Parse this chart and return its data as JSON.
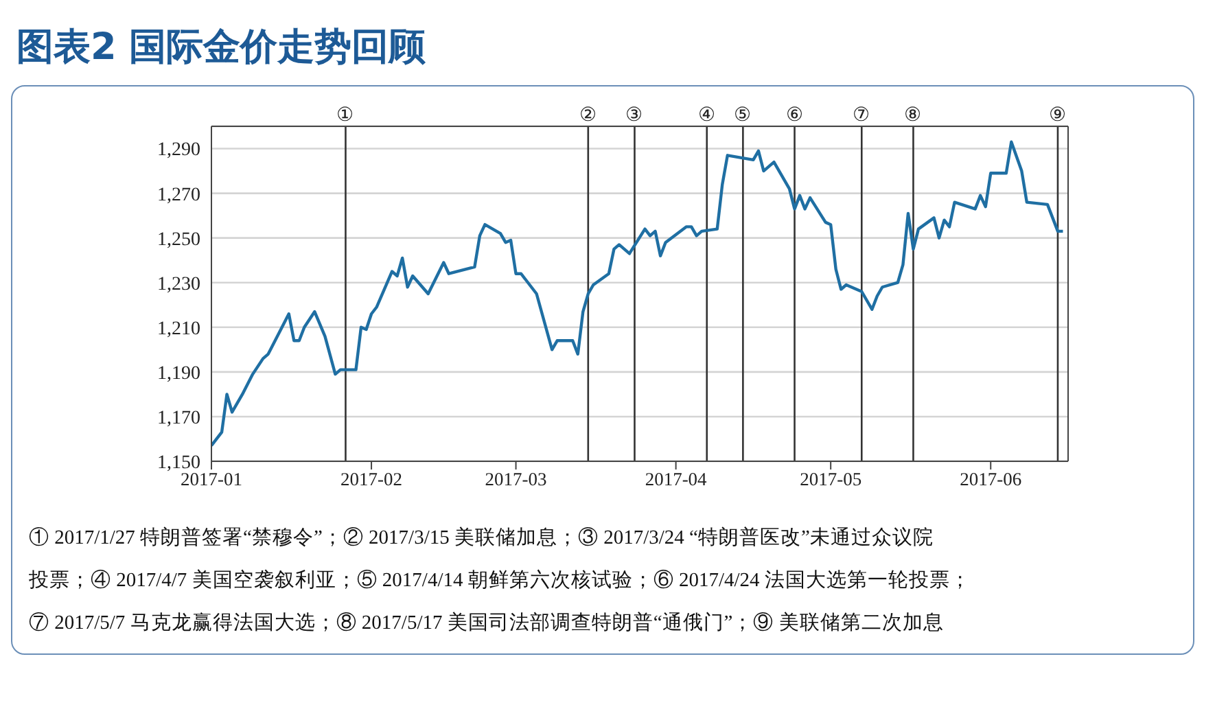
{
  "chart_data": {
    "type": "line",
    "title": "图表2 国际金价走势回顾",
    "x": [
      "2017-01-01",
      "2017-01-03",
      "2017-01-04",
      "2017-01-05",
      "2017-01-07",
      "2017-01-09",
      "2017-01-11",
      "2017-01-12",
      "2017-01-16",
      "2017-01-17",
      "2017-01-18",
      "2017-01-19",
      "2017-01-21",
      "2017-01-23",
      "2017-01-25",
      "2017-01-26",
      "2017-01-29",
      "2017-01-30",
      "2017-01-31",
      "2017-02-01",
      "2017-02-02",
      "2017-02-05",
      "2017-02-06",
      "2017-02-07",
      "2017-02-08",
      "2017-02-09",
      "2017-02-12",
      "2017-02-15",
      "2017-02-16",
      "2017-02-21",
      "2017-02-22",
      "2017-02-23",
      "2017-02-26",
      "2017-02-27",
      "2017-02-28",
      "2017-03-01",
      "2017-03-02",
      "2017-03-05",
      "2017-03-08",
      "2017-03-09",
      "2017-03-12",
      "2017-03-13",
      "2017-03-14",
      "2017-03-15",
      "2017-03-16",
      "2017-03-19",
      "2017-03-20",
      "2017-03-21",
      "2017-03-23",
      "2017-03-26",
      "2017-03-27",
      "2017-03-28",
      "2017-03-29",
      "2017-03-30",
      "2017-04-03",
      "2017-04-04",
      "2017-04-05",
      "2017-04-06",
      "2017-04-09",
      "2017-04-10",
      "2017-04-11",
      "2017-04-16",
      "2017-04-17",
      "2017-04-18",
      "2017-04-20",
      "2017-04-22",
      "2017-04-23",
      "2017-04-24",
      "2017-04-25",
      "2017-04-26",
      "2017-04-27",
      "2017-04-30",
      "2017-05-01",
      "2017-05-02",
      "2017-05-03",
      "2017-05-04",
      "2017-05-07",
      "2017-05-09",
      "2017-05-10",
      "2017-05-11",
      "2017-05-14",
      "2017-05-15",
      "2017-05-16",
      "2017-05-17",
      "2017-05-18",
      "2017-05-21",
      "2017-05-22",
      "2017-05-23",
      "2017-05-24",
      "2017-05-25",
      "2017-05-29",
      "2017-05-30",
      "2017-05-31",
      "2017-06-01",
      "2017-06-04",
      "2017-06-05",
      "2017-06-07",
      "2017-06-08",
      "2017-06-12",
      "2017-06-14",
      "2017-06-15"
    ],
    "series": [
      {
        "color": "#1f6fa3",
        "values": [
          1157,
          1163,
          1180,
          1172,
          1180,
          1189,
          1196,
          1198,
          1216,
          1204,
          1204,
          1210,
          1217,
          1206,
          1189,
          1191,
          1191,
          1210,
          1209,
          1216,
          1219,
          1235,
          1233,
          1241,
          1228,
          1233,
          1225,
          1239,
          1234,
          1237,
          1251,
          1256,
          1252,
          1248,
          1249,
          1234,
          1234,
          1225,
          1200,
          1204,
          1204,
          1198,
          1217,
          1225,
          1229,
          1234,
          1245,
          1247,
          1243,
          1254,
          1251,
          1253,
          1242,
          1248,
          1255,
          1255,
          1251,
          1253,
          1254,
          1274,
          1287,
          1285,
          1289,
          1280,
          1284,
          1276,
          1272,
          1263,
          1269,
          1263,
          1268,
          1257,
          1256,
          1236,
          1227,
          1229,
          1226,
          1218,
          1224,
          1228,
          1230,
          1238,
          1261,
          1245,
          1254,
          1259,
          1250,
          1258,
          1255,
          1266,
          1263,
          1269,
          1264,
          1279,
          1279,
          1293,
          1280,
          1266,
          1265,
          1253,
          1253
        ]
      }
    ],
    "xlim": [
      "2017-01-01",
      "2017-06-16"
    ],
    "xticks": [
      "2017-01",
      "2017-02",
      "2017-03",
      "2017-04",
      "2017-05",
      "2017-06"
    ],
    "ylim": [
      1150,
      1300
    ],
    "yticks": [
      {
        "value": 1150,
        "label": "1,150"
      },
      {
        "value": 1170,
        "label": "1,170"
      },
      {
        "value": 1190,
        "label": "1,190"
      },
      {
        "value": 1210,
        "label": "1,210"
      },
      {
        "value": 1230,
        "label": "1,230"
      },
      {
        "value": 1250,
        "label": "1,250"
      },
      {
        "value": 1270,
        "label": "1,270"
      },
      {
        "value": 1290,
        "label": "1,290"
      }
    ],
    "grid": "y",
    "legend": false,
    "line_style": "solid",
    "marker": "none",
    "ref_lines": [
      {
        "axis": "x",
        "value": "2017-01-27",
        "label": "①",
        "color": "#333333"
      },
      {
        "axis": "x",
        "value": "2017-03-15",
        "label": "②",
        "color": "#333333"
      },
      {
        "axis": "x",
        "value": "2017-03-24",
        "label": "③",
        "color": "#333333"
      },
      {
        "axis": "x",
        "value": "2017-04-07",
        "label": "④",
        "color": "#333333"
      },
      {
        "axis": "x",
        "value": "2017-04-14",
        "label": "⑤",
        "color": "#333333"
      },
      {
        "axis": "x",
        "value": "2017-04-24",
        "label": "⑥",
        "color": "#333333"
      },
      {
        "axis": "x",
        "value": "2017-05-07",
        "label": "⑦",
        "color": "#333333"
      },
      {
        "axis": "x",
        "value": "2017-05-17",
        "label": "⑧",
        "color": "#333333"
      },
      {
        "axis": "x",
        "value": "2017-06-14",
        "label": "⑨",
        "color": "#333333"
      }
    ],
    "annotations": [
      "① 2017/1/27  特朗普签署“禁穆令”；② 2017/3/15  美联储加息；③ 2017/3/24  “特朗普医改”未通过众议院",
      "投票；④ 2017/4/7  美国空袭叙利亚；⑤ 2017/4/14  朝鲜第六次核试验；⑥ 2017/4/24  法国大选第一轮投票；",
      "⑦ 2017/5/7  马克龙赢得法国大选；⑧ 2017/5/17  美国司法部调查特朗普“通俄门”；⑨  美联储第二次加息"
    ]
  }
}
